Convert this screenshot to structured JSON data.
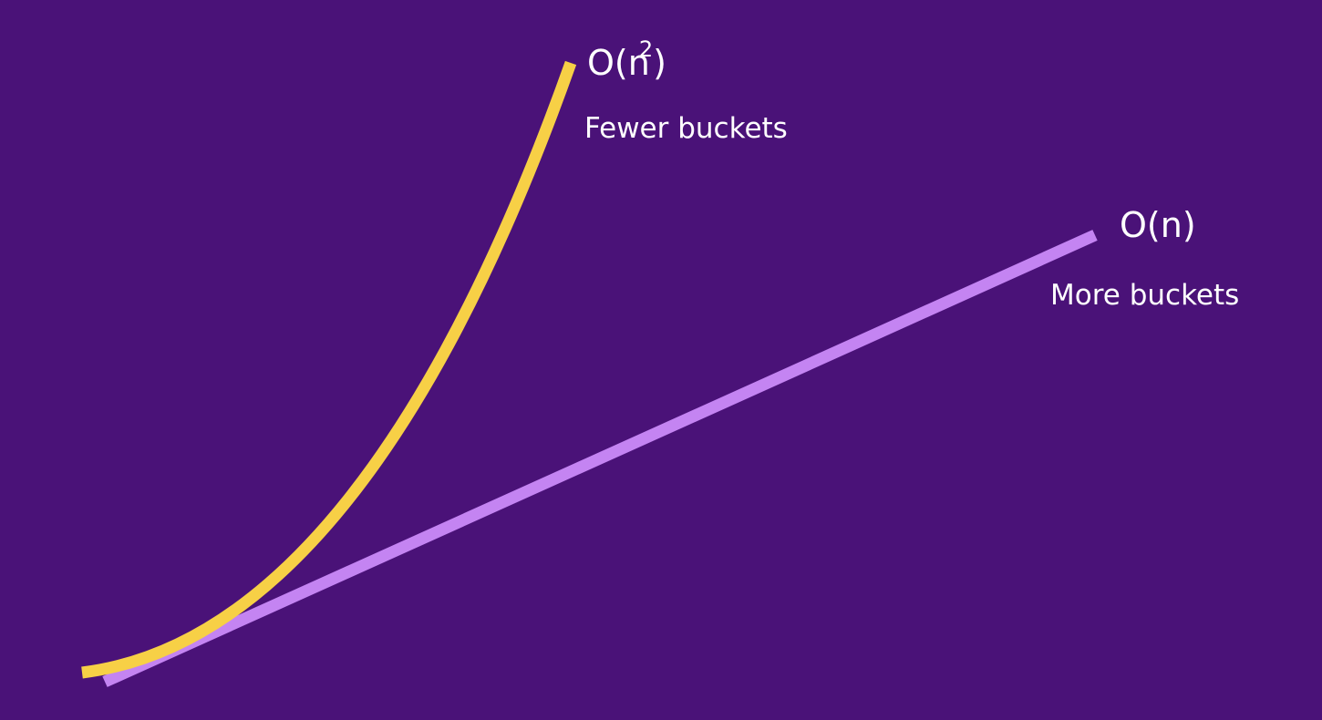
{
  "chart_data": {
    "type": "line",
    "title": "",
    "xlabel": "",
    "ylabel": "",
    "grid": false,
    "legend": "none",
    "series": [
      {
        "label": "O(n",
        "label_sup": "2",
        "label_close": ")",
        "caption": "Fewer buckets",
        "color": "#f7d046",
        "shape": "quadratic"
      },
      {
        "label": "O(n)",
        "caption": "More buckets",
        "color": "#c484f2",
        "shape": "linear"
      }
    ]
  },
  "colors": {
    "background": "#4a1278",
    "text": "#ffffff"
  }
}
